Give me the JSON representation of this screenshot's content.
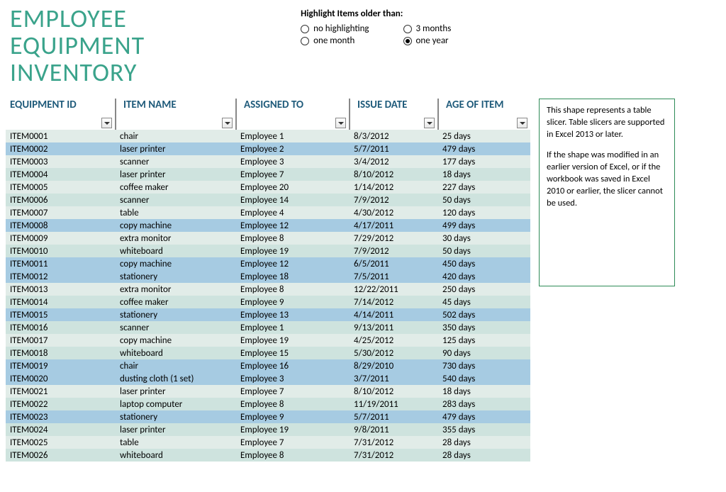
{
  "title": "EMPLOYEE\nEQUIPMENT\nINVENTORY",
  "highlight": {
    "label": "Highlight Items older than:",
    "options": [
      {
        "label": "no highlighting",
        "selected": false
      },
      {
        "label": "3 months",
        "selected": false
      },
      {
        "label": "one month",
        "selected": false
      },
      {
        "label": "one year",
        "selected": true
      }
    ]
  },
  "columns": {
    "id": "EQUIPMENT ID",
    "name": "ITEM NAME",
    "ass": "ASSIGNED TO",
    "date": "ISSUE DATE",
    "age": "AGE OF ITEM"
  },
  "rows": [
    {
      "id": "ITEM0001",
      "name": "chair",
      "ass": "Employee 1",
      "date": "8/3/2012",
      "age": "25 days",
      "hl": false
    },
    {
      "id": "ITEM0002",
      "name": "laser printer",
      "ass": "Employee 2",
      "date": "5/7/2011",
      "age": "479 days",
      "hl": true
    },
    {
      "id": "ITEM0003",
      "name": "scanner",
      "ass": "Employee 3",
      "date": "3/4/2012",
      "age": "177 days",
      "hl": false
    },
    {
      "id": "ITEM0004",
      "name": "laser printer",
      "ass": "Employee 7",
      "date": "8/10/2012",
      "age": "18 days",
      "hl": false
    },
    {
      "id": "ITEM0005",
      "name": "coffee maker",
      "ass": "Employee 20",
      "date": "1/14/2012",
      "age": "227 days",
      "hl": false
    },
    {
      "id": "ITEM0006",
      "name": "scanner",
      "ass": "Employee 14",
      "date": "7/9/2012",
      "age": "50 days",
      "hl": false
    },
    {
      "id": "ITEM0007",
      "name": "table",
      "ass": "Employee 4",
      "date": "4/30/2012",
      "age": "120 days",
      "hl": false
    },
    {
      "id": "ITEM0008",
      "name": "copy machine",
      "ass": "Employee 12",
      "date": "4/17/2011",
      "age": "499 days",
      "hl": true
    },
    {
      "id": "ITEM0009",
      "name": "extra monitor",
      "ass": "Employee 8",
      "date": "7/29/2012",
      "age": "30 days",
      "hl": false
    },
    {
      "id": "ITEM0010",
      "name": "whiteboard",
      "ass": "Employee 19",
      "date": "7/9/2012",
      "age": "50 days",
      "hl": false
    },
    {
      "id": "ITEM0011",
      "name": "copy machine",
      "ass": "Employee 12",
      "date": "6/5/2011",
      "age": "450 days",
      "hl": true
    },
    {
      "id": "ITEM0012",
      "name": "stationery",
      "ass": "Employee 18",
      "date": "7/5/2011",
      "age": "420 days",
      "hl": true
    },
    {
      "id": "ITEM0013",
      "name": "extra monitor",
      "ass": "Employee 8",
      "date": "12/22/2011",
      "age": "250 days",
      "hl": false
    },
    {
      "id": "ITEM0014",
      "name": "coffee maker",
      "ass": "Employee 9",
      "date": "7/14/2012",
      "age": "45 days",
      "hl": false
    },
    {
      "id": "ITEM0015",
      "name": "stationery",
      "ass": "Employee 13",
      "date": "4/14/2011",
      "age": "502 days",
      "hl": true
    },
    {
      "id": "ITEM0016",
      "name": "scanner",
      "ass": "Employee 1",
      "date": "9/13/2011",
      "age": "350 days",
      "hl": false
    },
    {
      "id": "ITEM0017",
      "name": "copy machine",
      "ass": "Employee 19",
      "date": "4/25/2012",
      "age": "125 days",
      "hl": false
    },
    {
      "id": "ITEM0018",
      "name": "whiteboard",
      "ass": "Employee 15",
      "date": "5/30/2012",
      "age": "90 days",
      "hl": false
    },
    {
      "id": "ITEM0019",
      "name": "chair",
      "ass": "Employee 16",
      "date": "8/29/2010",
      "age": "730 days",
      "hl": true
    },
    {
      "id": "ITEM0020",
      "name": "dusting cloth (1 set)",
      "ass": "Employee 3",
      "date": "3/7/2011",
      "age": "540 days",
      "hl": true
    },
    {
      "id": "ITEM0021",
      "name": "laser printer",
      "ass": "Employee 7",
      "date": "8/10/2012",
      "age": "18 days",
      "hl": false
    },
    {
      "id": "ITEM0022",
      "name": "laptop computer",
      "ass": "Employee 8",
      "date": "11/19/2011",
      "age": "283 days",
      "hl": false
    },
    {
      "id": "ITEM0023",
      "name": "stationery",
      "ass": "Employee 9",
      "date": "5/7/2011",
      "age": "479 days",
      "hl": true
    },
    {
      "id": "ITEM0024",
      "name": "laser printer",
      "ass": "Employee 19",
      "date": "9/8/2011",
      "age": "355 days",
      "hl": false
    },
    {
      "id": "ITEM0025",
      "name": "table",
      "ass": "Employee 7",
      "date": "7/31/2012",
      "age": "28 days",
      "hl": false
    },
    {
      "id": "ITEM0026",
      "name": "whiteboard",
      "ass": "Employee 8",
      "date": "7/31/2012",
      "age": "28 days",
      "hl": false
    }
  ],
  "slicer_note": {
    "p1": "This shape represents a table slicer. Table slicers are supported in Excel 2013 or later.",
    "p2": "If the shape was modified in an earlier version of Excel, or if the workbook was saved in Excel 2010 or earlier, the slicer cannot be used."
  },
  "colors": {
    "title": "#3aa38b",
    "header_text": "#1e5a7a",
    "band_light": "#e1ece8",
    "band_dark": "#cee3de",
    "highlight_row": "#a6cbe2",
    "note_border": "#2e8b57"
  }
}
